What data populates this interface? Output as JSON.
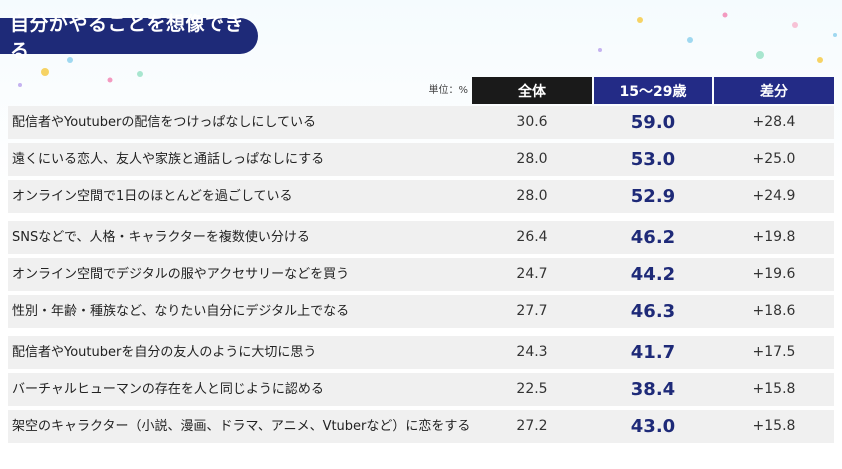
{
  "title": "自分がやることを想像できる",
  "unit_label": "単位：%",
  "colors": {
    "banner": "#1e2a78",
    "header_all": "#1a1a1a",
    "header_young": "#232b86",
    "accent_value": "#1e2a78",
    "row_bg": "#f0f0f0"
  },
  "chart_data": {
    "type": "table",
    "columns": [
      "全体",
      "15～29歳",
      "差分"
    ],
    "rows": [
      {
        "label": "配信者やYoutuberの配信をつけっぱなしにしている",
        "all": "30.6",
        "young": "59.0",
        "diff": "+28.4"
      },
      {
        "label": "遠くにいる恋人、友人や家族と通話しっぱなしにする",
        "all": "28.0",
        "young": "53.0",
        "diff": "+25.0"
      },
      {
        "label": "オンライン空間で1日のほとんどを過ごしている",
        "all": "28.0",
        "young": "52.9",
        "diff": "+24.9"
      },
      {
        "label": "SNSなどで、人格・キャラクターを複数使い分ける",
        "all": "26.4",
        "young": "46.2",
        "diff": "+19.8"
      },
      {
        "label": "オンライン空間でデジタルの服やアクセサリーなどを買う",
        "all": "24.7",
        "young": "44.2",
        "diff": "+19.6"
      },
      {
        "label": "性別・年齢・種族など、なりたい自分にデジタル上でなる",
        "all": "27.7",
        "young": "46.3",
        "diff": "+18.6"
      },
      {
        "label": "配信者やYoutuberを自分の友人のように大切に思う",
        "all": "24.3",
        "young": "41.7",
        "diff": "+17.5"
      },
      {
        "label": "バーチャルヒューマンの存在を人と同じように認める",
        "all": "22.5",
        "young": "38.4",
        "diff": "+15.8"
      },
      {
        "label": "架空のキャラクター（小説、漫画、ドラマ、アニメ、Vtuberなど）に恋をする",
        "all": "27.2",
        "young": "43.0",
        "diff": "+15.8"
      }
    ]
  }
}
